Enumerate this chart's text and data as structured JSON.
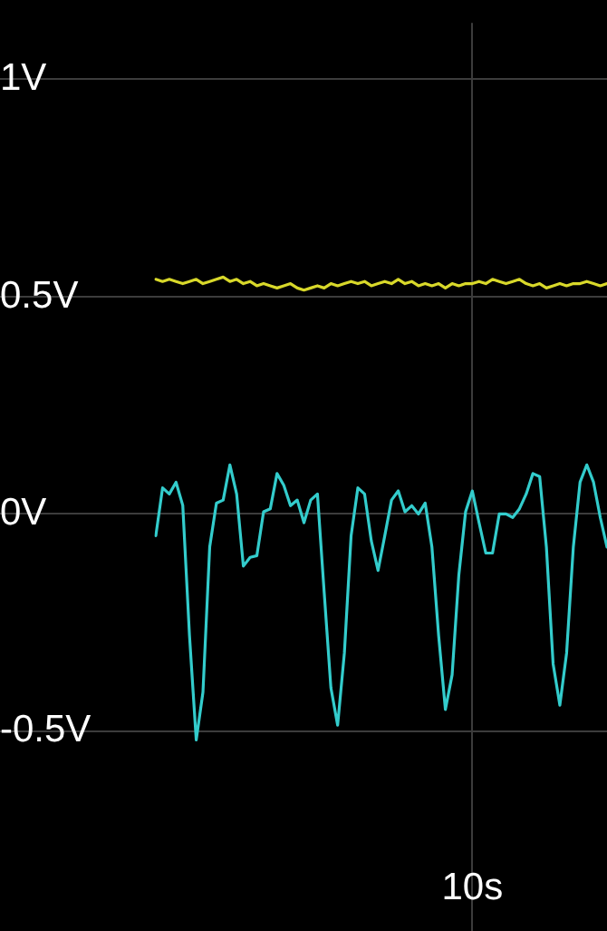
{
  "chart_data": {
    "type": "line",
    "categories": [
      null,
      null,
      null,
      null,
      null,
      null,
      null,
      null,
      null,
      null,
      null,
      null,
      null,
      null,
      null,
      null,
      null,
      null,
      null,
      null,
      null,
      null,
      null,
      null,
      null,
      null,
      null,
      null,
      null,
      null,
      null,
      null,
      null,
      null,
      null,
      null,
      null,
      null,
      null,
      null,
      null,
      null,
      null,
      null,
      null,
      null,
      null,
      "10s",
      null,
      null,
      null,
      null,
      null,
      null,
      null,
      null,
      null,
      null,
      null,
      null,
      null,
      null,
      null,
      null,
      null,
      null,
      null,
      null
    ],
    "series": [
      {
        "color": "#d8d82a",
        "values": [
          0.54,
          0.535,
          0.54,
          0.535,
          0.53,
          0.535,
          0.54,
          0.53,
          0.535,
          0.54,
          0.545,
          0.535,
          0.54,
          0.53,
          0.535,
          0.525,
          0.53,
          0.525,
          0.52,
          0.525,
          0.53,
          0.52,
          0.515,
          0.52,
          0.525,
          0.52,
          0.53,
          0.525,
          0.53,
          0.535,
          0.53,
          0.535,
          0.525,
          0.53,
          0.535,
          0.53,
          0.54,
          0.53,
          0.535,
          0.525,
          0.53,
          0.525,
          0.53,
          0.52,
          0.53,
          0.525,
          0.53,
          0.53,
          0.535,
          0.53,
          0.54,
          0.535,
          0.53,
          0.535,
          0.54,
          0.53,
          0.525,
          0.53,
          0.52,
          0.525,
          0.53,
          0.525,
          0.53,
          0.53,
          0.535,
          0.53,
          0.525,
          0.53
        ]
      },
      {
        "color": "#33cccc",
        "values": [
          -0.05,
          0.06,
          0.046,
          0.073,
          0.02,
          -0.28,
          -0.52,
          -0.41,
          -0.076,
          0.025,
          0.032,
          0.113,
          0.046,
          -0.12,
          -0.1,
          -0.096,
          0.005,
          0.012,
          0.093,
          0.066,
          0.019,
          0.032,
          -0.02,
          0.032,
          0.046,
          -0.18,
          -0.4,
          -0.486,
          -0.32,
          -0.05,
          0.06,
          0.046,
          -0.062,
          -0.13,
          -0.05,
          0.032,
          0.053,
          0.005,
          0.019,
          0,
          0.025,
          -0.076,
          -0.28,
          -0.45,
          -0.37,
          -0.14,
          0.005,
          0.053,
          -0.02,
          -0.09,
          -0.09,
          0,
          0,
          -0.008,
          0.012,
          0.046,
          0.093,
          0.086,
          -0.076,
          -0.345,
          -0.44,
          -0.32,
          -0.076,
          0.073,
          0.113,
          0.073,
          -0.008,
          -0.076
        ]
      }
    ],
    "ylim": [
      -0.78,
      1.13
    ],
    "yticks": [
      {
        "value": 1,
        "label": "1V"
      },
      {
        "value": 0.5,
        "label": "0.5V"
      },
      {
        "value": 0,
        "label": "0V"
      },
      {
        "value": -0.5,
        "label": "-0.5V"
      }
    ],
    "grid": true,
    "legend": false,
    "marker": "none",
    "line_style": "solid"
  }
}
